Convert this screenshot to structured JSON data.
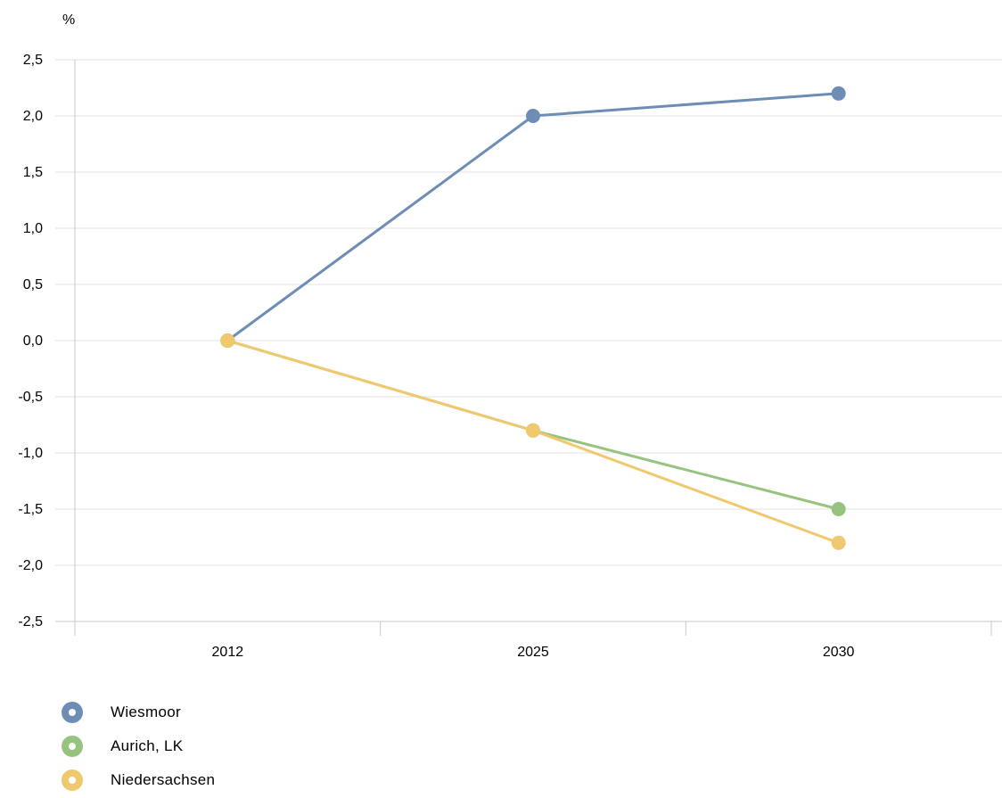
{
  "chart_data": {
    "type": "line",
    "unit_label": "%",
    "x": [
      "2012",
      "2025",
      "2030"
    ],
    "ylim": [
      -2.5,
      2.5
    ],
    "yticks": [
      "2,5",
      "2,0",
      "1,5",
      "1,0",
      "0,5",
      "0,0",
      "-0,5",
      "-1,0",
      "-1,5",
      "-2,0",
      "-2,5"
    ],
    "ytick_values": [
      2.5,
      2.0,
      1.5,
      1.0,
      0.5,
      0.0,
      -0.5,
      -1.0,
      -1.5,
      -2.0,
      -2.5
    ],
    "grid": true,
    "legend_position": "bottom-left",
    "series": [
      {
        "name": "Wiesmoor",
        "color": "#6e8db5",
        "values": [
          0.0,
          2.0,
          2.2
        ]
      },
      {
        "name": "Aurich, LK",
        "color": "#96c47e",
        "values": [
          0.0,
          -0.8,
          -1.5
        ]
      },
      {
        "name": "Niedersachsen",
        "color": "#f0c86e",
        "values": [
          0.0,
          -0.8,
          -1.8
        ]
      }
    ]
  }
}
